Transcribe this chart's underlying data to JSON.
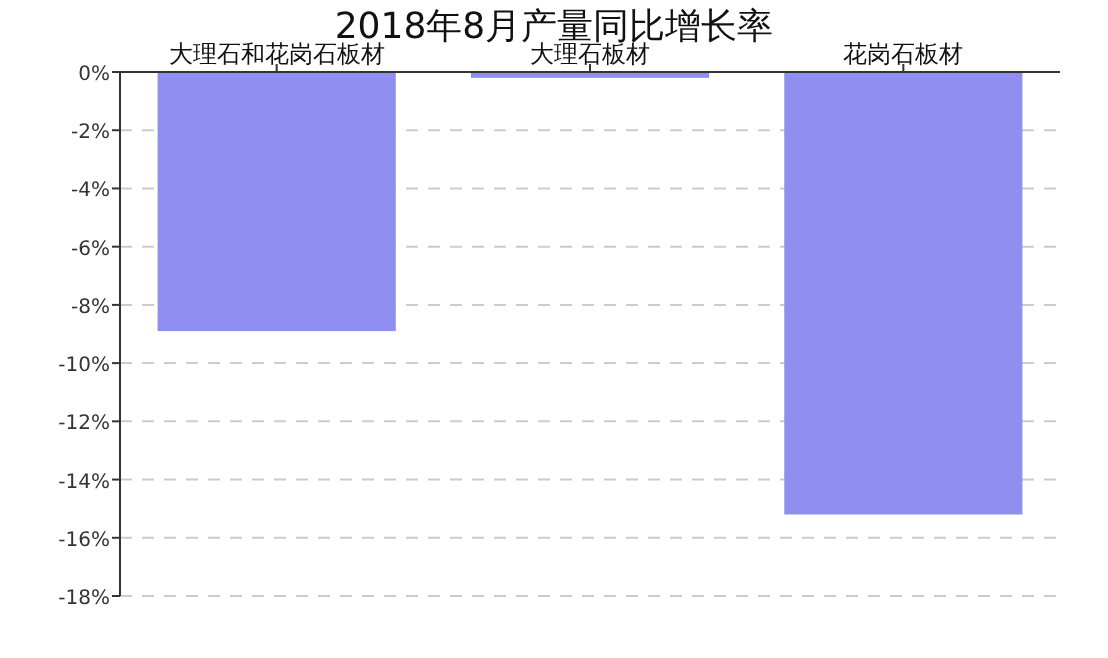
{
  "chart_data": {
    "type": "bar",
    "title": "2018年8月产量同比增长率",
    "categories": [
      "大理石和花岗石板材",
      "大理石板材",
      "花岗石板材"
    ],
    "values": [
      -8.9,
      -0.2,
      -15.2
    ],
    "color": "#8f8fef",
    "ylim": [
      -18,
      0
    ],
    "yticks": [
      {
        "value": 0,
        "label": "0%"
      },
      {
        "value": -2,
        "label": "-2%"
      },
      {
        "value": -4,
        "label": "-4%"
      },
      {
        "value": -6,
        "label": "-6%"
      },
      {
        "value": -8,
        "label": "-8%"
      },
      {
        "value": -10,
        "label": "-10%"
      },
      {
        "value": -12,
        "label": "-12%"
      },
      {
        "value": -14,
        "label": "-14%"
      },
      {
        "value": -16,
        "label": "-16%"
      },
      {
        "value": -18,
        "label": "-18%"
      }
    ],
    "grid": "y"
  }
}
